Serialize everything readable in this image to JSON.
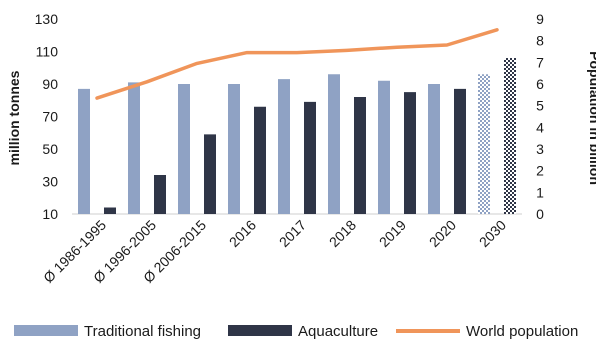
{
  "chart_data": {
    "type": "bar",
    "categories": [
      "Ø 1986-1995",
      "Ø 1996-2005",
      "Ø 2006-2015",
      "2016",
      "2017",
      "2018",
      "2019",
      "2020",
      "2030"
    ],
    "series": [
      {
        "name": "Traditional fishing",
        "kind": "bar",
        "axis": "left",
        "color": "#8fa2c4",
        "values": [
          87,
          91,
          90,
          90,
          93,
          96,
          92,
          90,
          96
        ],
        "projected_from_index": 8
      },
      {
        "name": "Aquaculture",
        "kind": "bar",
        "axis": "left",
        "color": "#2f3547",
        "values": [
          14,
          34,
          59,
          76,
          79,
          82,
          85,
          87,
          106
        ],
        "projected_from_index": 8
      },
      {
        "name": "World population",
        "kind": "line",
        "axis": "right",
        "color": "#f0955a",
        "values": [
          5.35,
          6.1,
          6.95,
          7.45,
          7.45,
          7.55,
          7.7,
          7.8,
          8.5
        ]
      }
    ],
    "ylabel": "million tonnes",
    "y2label": "Population in billion",
    "ylim": [
      10,
      130
    ],
    "yticks": [
      10,
      30,
      50,
      70,
      90,
      110,
      130
    ],
    "y2lim": [
      0,
      9
    ],
    "y2ticks": [
      0,
      1,
      2,
      3,
      4,
      5,
      6,
      7,
      8,
      9
    ],
    "grid": false,
    "legend_position": "bottom"
  }
}
